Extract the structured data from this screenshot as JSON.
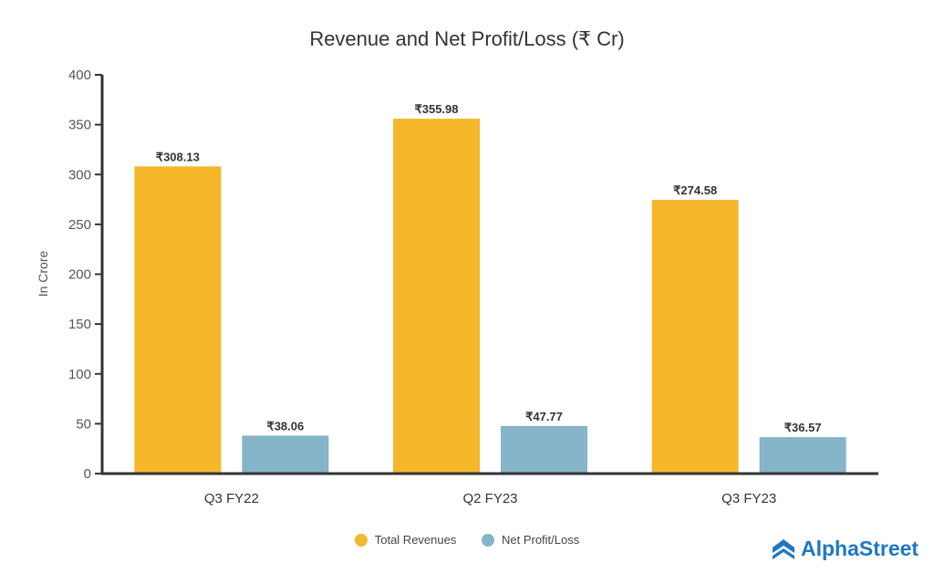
{
  "chart_data": {
    "type": "bar",
    "title": "Revenue and Net Profit/Loss (₹ Cr)",
    "xlabel": "",
    "ylabel": "In Crore",
    "ylim": [
      0,
      400
    ],
    "yticks": [
      0,
      50,
      100,
      150,
      200,
      250,
      300,
      350,
      400
    ],
    "categories": [
      "Q3 FY22",
      "Q2 FY23",
      "Q3 FY23"
    ],
    "series": [
      {
        "name": "Total Revenues",
        "color": "#F5B82A",
        "values": [
          308.13,
          355.98,
          274.58
        ],
        "labels": [
          "₹308.13",
          "₹355.98",
          "₹274.58"
        ]
      },
      {
        "name": "Net Profit/Loss",
        "color": "#86B4C8",
        "values": [
          38.06,
          47.77,
          36.57
        ],
        "labels": [
          "₹38.06",
          "₹47.77",
          "₹36.57"
        ]
      }
    ],
    "legend_position": "bottom",
    "grid": false
  },
  "brand": {
    "name": "AlphaStreet",
    "color": "#1F77C4"
  }
}
